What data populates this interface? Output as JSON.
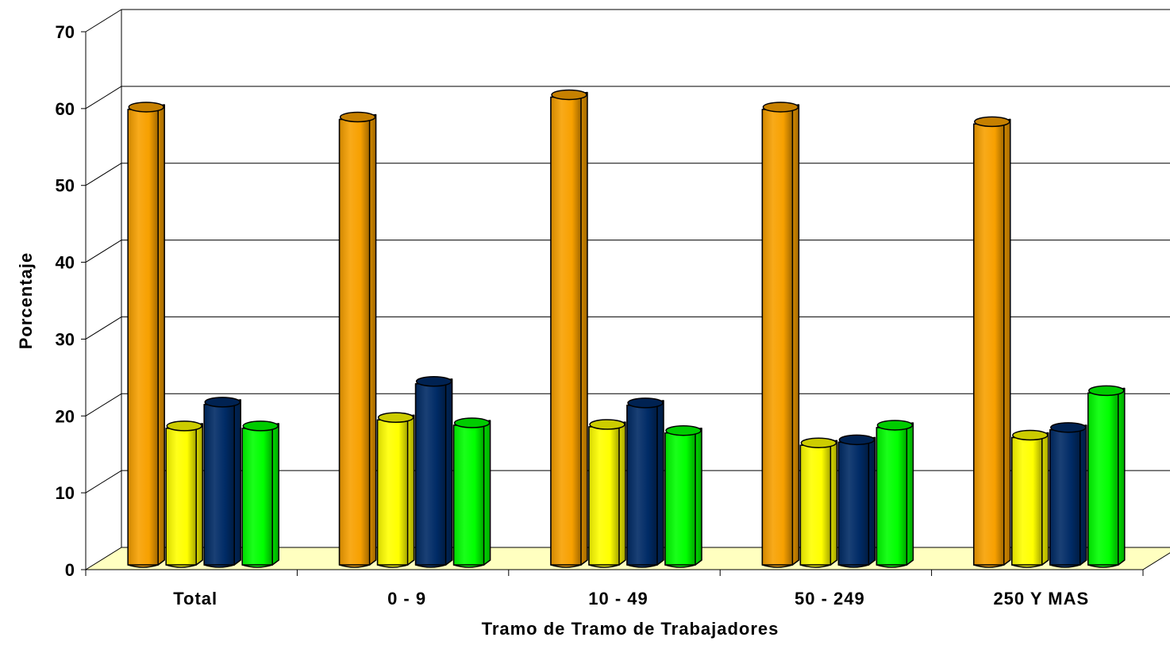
{
  "chart_data": {
    "type": "bar",
    "subtype": "3d-clustered-cylinder",
    "title": "",
    "xlabel": "Tramo de Tramo de Trabajadores",
    "ylabel": "Porcentaje",
    "ylim": [
      0,
      70
    ],
    "yticks": [
      0,
      10,
      20,
      30,
      40,
      50,
      60,
      70
    ],
    "grid": true,
    "legend": "none",
    "floor_color": "#ffffc0",
    "categories": [
      "Total",
      "0 - 9",
      "10 - 49",
      "50 - 249",
      "250 Y MAS"
    ],
    "series": [
      {
        "color": "#f7a000",
        "values": [
          60.3,
          59.0,
          61.9,
          60.3,
          58.4
        ]
      },
      {
        "color": "#ffff00",
        "values": [
          18.8,
          19.9,
          19.0,
          16.6,
          17.6
        ]
      },
      {
        "color": "#002b66",
        "values": [
          21.9,
          24.6,
          21.8,
          17.0,
          18.6
        ]
      },
      {
        "color": "#00ff00",
        "values": [
          18.8,
          19.2,
          18.2,
          18.9,
          23.4
        ]
      }
    ]
  }
}
